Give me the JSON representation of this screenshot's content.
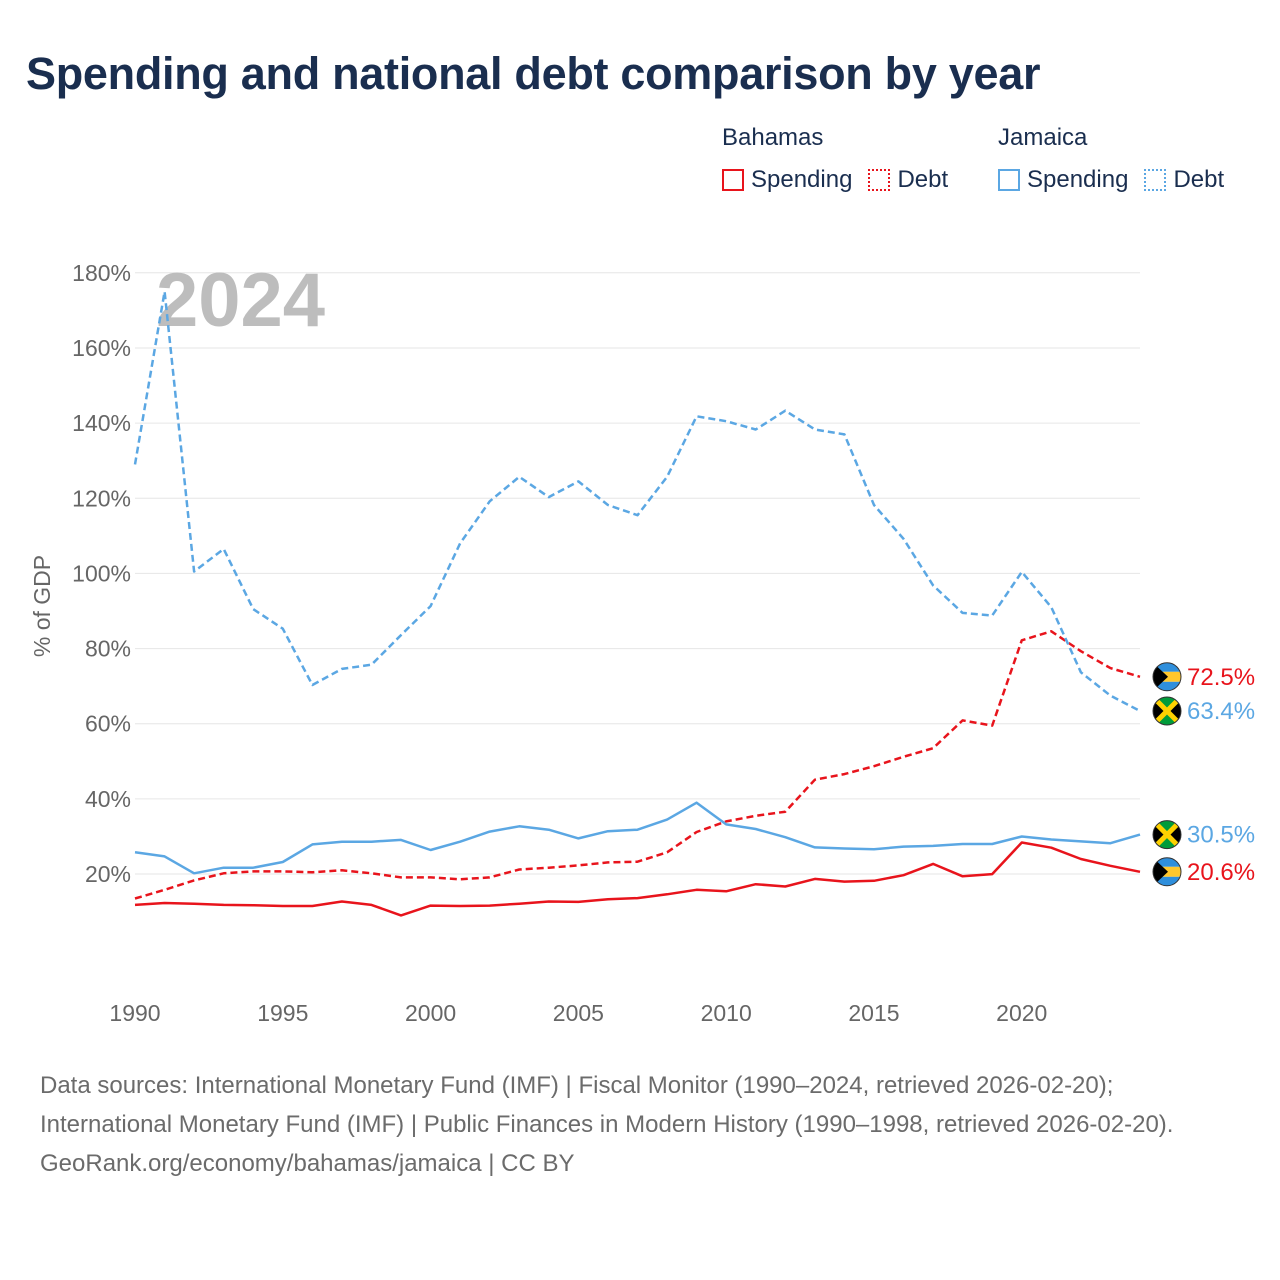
{
  "title": "Spending and national debt comparison by year",
  "legend": {
    "groups": [
      {
        "name": "Bahamas",
        "items": [
          {
            "label": "Spending",
            "color": "#e8141c",
            "style": "solid"
          },
          {
            "label": "Debt",
            "color": "#e8141c",
            "style": "dotted"
          }
        ]
      },
      {
        "name": "Jamaica",
        "items": [
          {
            "label": "Spending",
            "color": "#5ba7e3",
            "style": "solid"
          },
          {
            "label": "Debt",
            "color": "#5ba7e3",
            "style": "dotted"
          }
        ]
      }
    ]
  },
  "chart_data": {
    "type": "line",
    "ylabel": "% of GDP",
    "ylim": [
      -5,
      185
    ],
    "xlim": [
      1990,
      2024
    ],
    "y_ticks": [
      20,
      40,
      60,
      80,
      100,
      120,
      140,
      160,
      180
    ],
    "y_tick_labels": [
      "20%",
      "40%",
      "60%",
      "80%",
      "100%",
      "120%",
      "140%",
      "160%",
      "180%"
    ],
    "x_ticks": [
      1990,
      1995,
      2000,
      2005,
      2010,
      2015,
      2020
    ],
    "x_tick_labels": [
      "1990",
      "1995",
      "2000",
      "2005",
      "2010",
      "2015",
      "2020"
    ],
    "year_watermark": "2024",
    "x": [
      1990,
      1991,
      1992,
      1993,
      1994,
      1995,
      1996,
      1997,
      1998,
      1999,
      2000,
      2001,
      2002,
      2003,
      2004,
      2005,
      2006,
      2007,
      2008,
      2009,
      2010,
      2011,
      2012,
      2013,
      2014,
      2015,
      2016,
      2017,
      2018,
      2019,
      2020,
      2021,
      2022,
      2023,
      2024
    ],
    "series": [
      {
        "name": "Bahamas Debt",
        "country": "Bahamas",
        "metric": "Debt",
        "color": "#e8141c",
        "dash": "dashed",
        "end_label": "72.5%",
        "values": [
          13.5,
          15.8,
          18.3,
          20.2,
          20.7,
          20.7,
          20.5,
          21.0,
          20.2,
          19.1,
          19.1,
          18.6,
          19.1,
          21.2,
          21.7,
          22.3,
          23.1,
          23.3,
          25.8,
          31.2,
          34.0,
          35.5,
          36.6,
          45.1,
          46.6,
          48.7,
          51.2,
          53.5,
          60.9,
          59.5,
          82.2,
          84.6,
          79.3,
          74.8,
          72.5
        ]
      },
      {
        "name": "Jamaica Debt",
        "country": "Jamaica",
        "metric": "Debt",
        "color": "#5ba7e3",
        "dash": "dashed",
        "end_label": "63.4%",
        "values": [
          129.0,
          175.0,
          100.5,
          106.5,
          90.5,
          85.3,
          70.3,
          74.6,
          75.7,
          83.6,
          91.3,
          108.0,
          119.2,
          125.7,
          120.3,
          124.5,
          118.2,
          115.5,
          125.7,
          141.8,
          140.5,
          138.3,
          143.3,
          138.3,
          137.0,
          118.2,
          109.2,
          96.8,
          89.5,
          88.8,
          100.4,
          91.0,
          73.7,
          67.5,
          63.4
        ]
      },
      {
        "name": "Jamaica Spending",
        "country": "Jamaica",
        "metric": "Spending",
        "color": "#5ba7e3",
        "dash": "solid",
        "end_label": "30.5%",
        "values": [
          25.8,
          24.7,
          20.2,
          21.7,
          21.7,
          23.2,
          27.9,
          28.6,
          28.6,
          29.1,
          26.4,
          28.6,
          31.3,
          32.7,
          31.8,
          29.5,
          31.4,
          31.8,
          34.5,
          39.0,
          33.2,
          32.0,
          29.8,
          27.1,
          26.8,
          26.6,
          27.3,
          27.5,
          28.0,
          28.0,
          30.0,
          29.2,
          28.7,
          28.2,
          30.5
        ]
      },
      {
        "name": "Bahamas Spending",
        "country": "Bahamas",
        "metric": "Spending",
        "color": "#e8141c",
        "dash": "solid",
        "end_label": "20.6%",
        "values": [
          11.8,
          12.3,
          12.1,
          11.8,
          11.7,
          11.5,
          11.5,
          12.7,
          11.8,
          9.0,
          11.6,
          11.5,
          11.6,
          12.1,
          12.7,
          12.6,
          13.3,
          13.6,
          14.6,
          15.8,
          15.4,
          17.3,
          16.7,
          18.7,
          18.0,
          18.2,
          19.7,
          22.7,
          19.4,
          20.0,
          28.4,
          27.0,
          24.0,
          22.2,
          20.6
        ]
      }
    ]
  },
  "footer": {
    "sources": "Data sources: International Monetary Fund (IMF) | Fiscal Monitor (1990–2024, retrieved 2026-02-20); International Monetary Fund (IMF) | Public Finances in Modern History (1990–1998, retrieved 2026-02-20).",
    "credit": "GeoRank.org/economy/bahamas/jamaica | CC BY"
  }
}
